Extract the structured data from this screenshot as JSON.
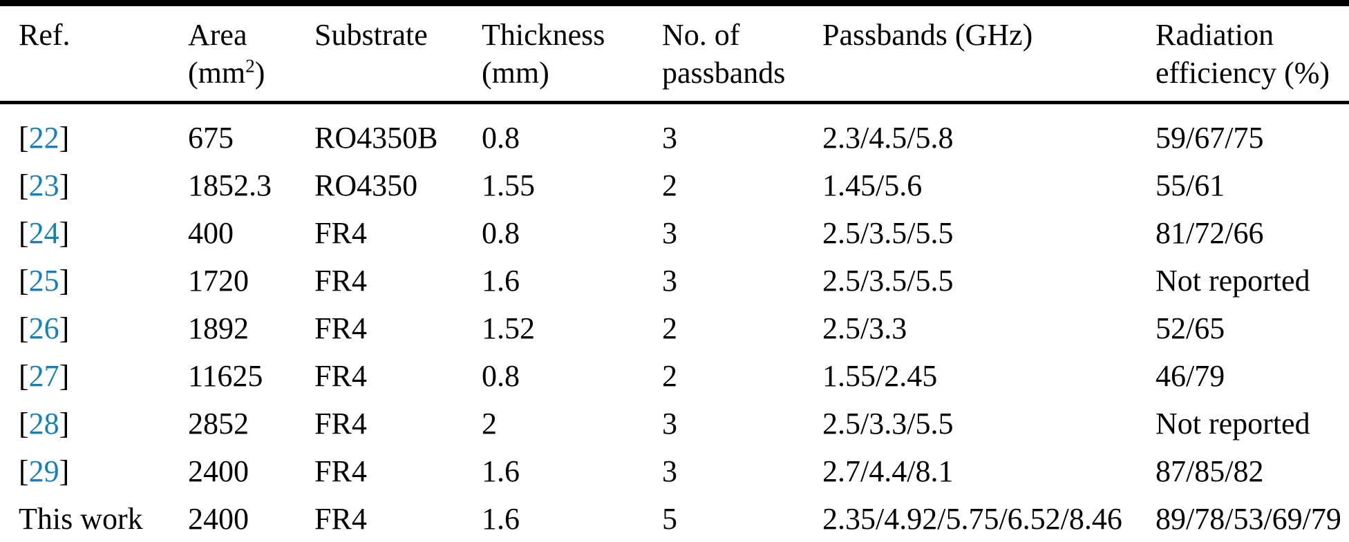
{
  "page": {
    "background": "#ffffff",
    "text_color": "#000000",
    "citation_color": "#1780b4"
  },
  "table": {
    "headers": {
      "ref": "Ref.",
      "area_line1": "Area",
      "area_unit_open": "(mm",
      "area_unit_sup": "2",
      "area_unit_close": ")",
      "substrate": "Substrate",
      "thickness_line1": "Thickness",
      "thickness_line2": "(mm)",
      "passband_count_line1": "No. of",
      "passband_count_line2": "passbands",
      "passbands": "Passbands (GHz)",
      "radiation_line1": "Radiation",
      "radiation_line2": "efficiency (%)"
    },
    "rows": [
      {
        "ref_prefix": "[",
        "ref_cite": "22",
        "ref_suffix": "]",
        "ref_plain": "",
        "area": "675",
        "substrate": "RO4350B",
        "thickness": "0.8",
        "num_passbands": "3",
        "passbands": "2.3/4.5/5.8",
        "radiation_efficiency": "59/67/75"
      },
      {
        "ref_prefix": "[",
        "ref_cite": "23",
        "ref_suffix": "]",
        "ref_plain": "",
        "area": "1852.3",
        "substrate": "RO4350",
        "thickness": "1.55",
        "num_passbands": "2",
        "passbands": "1.45/5.6",
        "radiation_efficiency": "55/61"
      },
      {
        "ref_prefix": "[",
        "ref_cite": "24",
        "ref_suffix": "]",
        "ref_plain": "",
        "area": "400",
        "substrate": "FR4",
        "thickness": "0.8",
        "num_passbands": "3",
        "passbands": "2.5/3.5/5.5",
        "radiation_efficiency": "81/72/66"
      },
      {
        "ref_prefix": "[",
        "ref_cite": "25",
        "ref_suffix": "]",
        "ref_plain": "",
        "area": "1720",
        "substrate": "FR4",
        "thickness": "1.6",
        "num_passbands": "3",
        "passbands": "2.5/3.5/5.5",
        "radiation_efficiency": "Not reported"
      },
      {
        "ref_prefix": "[",
        "ref_cite": "26",
        "ref_suffix": "]",
        "ref_plain": "",
        "area": "1892",
        "substrate": "FR4",
        "thickness": "1.52",
        "num_passbands": "2",
        "passbands": "2.5/3.3",
        "radiation_efficiency": "52/65"
      },
      {
        "ref_prefix": "[",
        "ref_cite": "27",
        "ref_suffix": "]",
        "ref_plain": "",
        "area": "11625",
        "substrate": "FR4",
        "thickness": "0.8",
        "num_passbands": "2",
        "passbands": "1.55/2.45",
        "radiation_efficiency": "46/79"
      },
      {
        "ref_prefix": "[",
        "ref_cite": "28",
        "ref_suffix": "]",
        "ref_plain": "",
        "area": "2852",
        "substrate": "FR4",
        "thickness": "2",
        "num_passbands": "3",
        "passbands": "2.5/3.3/5.5",
        "radiation_efficiency": "Not reported"
      },
      {
        "ref_prefix": "[",
        "ref_cite": "29",
        "ref_suffix": "]",
        "ref_plain": "",
        "area": "2400",
        "substrate": "FR4",
        "thickness": "1.6",
        "num_passbands": "3",
        "passbands": "2.7/4.4/8.1",
        "radiation_efficiency": "87/85/82"
      },
      {
        "ref_prefix": "",
        "ref_cite": "",
        "ref_suffix": "",
        "ref_plain": "This work",
        "area": "2400",
        "substrate": "FR4",
        "thickness": "1.6",
        "num_passbands": "5",
        "passbands": "2.35/4.92/5.75/6.52/8.46",
        "radiation_efficiency": "89/78/53/69/79"
      }
    ]
  }
}
